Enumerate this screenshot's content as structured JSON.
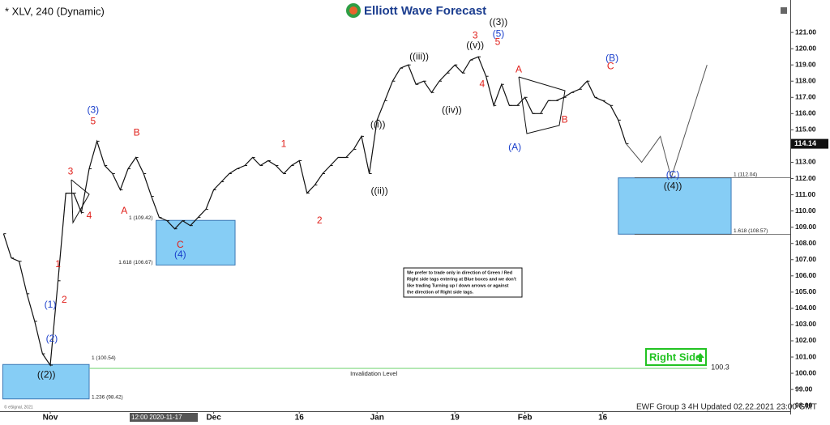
{
  "title": "* XLV, 240 (Dynamic)",
  "logo": "Elliott Wave Forecast",
  "note": [
    "We prefer to trade only in direction of Green / Red",
    "Right side tags entering at Blue boxes and we don't",
    "like trading Turning up / down arrows or against",
    "the direction of Right side tags."
  ],
  "right_side": "Right Side",
  "footer": "EWF Group 3 4H Updated 02.22.2021 23:00 GMT",
  "crosshair_label": "12:00 2020-11-17",
  "copyright": "© eSignal, 2021",
  "chart_data": {
    "type": "line",
    "x": [
      -6,
      -5,
      -4,
      -3,
      -2,
      -1,
      0,
      1,
      2,
      3,
      4,
      5,
      6,
      7,
      8,
      9,
      10,
      11,
      12,
      13,
      14,
      15,
      16,
      17,
      18,
      19,
      20,
      21,
      22,
      23,
      24,
      25,
      26,
      27,
      28,
      29,
      30,
      31,
      32,
      33,
      34,
      35,
      36,
      37,
      38,
      39,
      40,
      41,
      42,
      43,
      44,
      45,
      46,
      47,
      48,
      49,
      50,
      51,
      52,
      53,
      54,
      55,
      56,
      57,
      58,
      59,
      60,
      61,
      62,
      63,
      64,
      65,
      66,
      67,
      68,
      69,
      70,
      71,
      72,
      73,
      74
    ],
    "series": [
      {
        "color": "#111111",
        "values": [
          108.6,
          107.1,
          106.9,
          104.9,
          103.2,
          101.2,
          100.5,
          105.7,
          111.1,
          111.1,
          109.9,
          112.6,
          114.3,
          112.8,
          112.3,
          111.3,
          112.6,
          113.3,
          112.3,
          110.9,
          109.6,
          109.4,
          108.9,
          109.4,
          109.1,
          109.6,
          110.1,
          111.3,
          111.8,
          112.3,
          112.6,
          112.8,
          113.3,
          112.8,
          113.1,
          112.8,
          112.3,
          112.8,
          113.1,
          111.1,
          111.6,
          112.3,
          112.8,
          113.3,
          113.3,
          113.8,
          114.6,
          112.3,
          115.6,
          116.8,
          118.0,
          118.8,
          119.0,
          117.8,
          118.0,
          117.3,
          118.0,
          118.5,
          119.0,
          118.5,
          119.3,
          119.5,
          118.3,
          116.5,
          117.8,
          116.5,
          116.5,
          117.0,
          116.0,
          116.0,
          116.8,
          116.8,
          117.0,
          117.3,
          117.5,
          118.0,
          117.0,
          116.8,
          116.5,
          115.6,
          114.14
        ]
      }
    ],
    "projection": {
      "color": "#555555",
      "x": [
        74,
        76,
        78.4,
        79.8,
        84.4
      ],
      "values": [
        114.14,
        113.0,
        114.6,
        112.04,
        119.0
      ]
    },
    "invalidation": {
      "value": 100.3,
      "label": "Invalidation Level",
      "color": "#7fd87f",
      "x": [
        5,
        84.4
      ]
    },
    "boxes": [
      {
        "x": [
          13.6,
          23.75
        ],
        "y": [
          106.67,
          109.42
        ],
        "labels": [
          "1.618 (106.67)",
          "1 (109.42)"
        ],
        "label_side": "left"
      },
      {
        "x": [
          73.0,
          87.5
        ],
        "y": [
          108.57,
          112.04
        ],
        "labels": [
          "1.618 (108.57)",
          "1 (112.04)"
        ],
        "label_side": "right"
      },
      {
        "x": [
          -6.1,
          5.0
        ],
        "y": [
          98.42,
          100.54
        ],
        "labels": [
          "1.236 (98.42)",
          "1 (100.54)"
        ],
        "label_side": "inside"
      }
    ],
    "box_color": "#86cdf5",
    "waves": [
      {
        "text": "((2))",
        "x": -0.5,
        "y": 99.9,
        "color": "#111111"
      },
      {
        "text": "(1)",
        "x": 0,
        "y": 104.2,
        "color": "#1a3fcc"
      },
      {
        "text": "(2)",
        "x": 0.2,
        "y": 102.1,
        "color": "#1a3fcc"
      },
      {
        "text": "1",
        "x": 1.0,
        "y": 106.7,
        "color": "#e0201b"
      },
      {
        "text": "2",
        "x": 1.8,
        "y": 104.5,
        "color": "#e0201b"
      },
      {
        "text": "3",
        "x": 2.6,
        "y": 112.4,
        "color": "#e0201b"
      },
      {
        "text": "4",
        "x": 5.0,
        "y": 109.7,
        "color": "#e0201b"
      },
      {
        "text": "(3)",
        "x": 5.5,
        "y": 116.2,
        "color": "#1a3fcc"
      },
      {
        "text": "5",
        "x": 5.5,
        "y": 115.5,
        "color": "#e0201b"
      },
      {
        "text": "A",
        "x": 9.5,
        "y": 110.0,
        "color": "#e0201b"
      },
      {
        "text": "B",
        "x": 11.1,
        "y": 114.8,
        "color": "#e0201b"
      },
      {
        "text": "C",
        "x": 16.7,
        "y": 107.9,
        "color": "#e0201b"
      },
      {
        "text": "(4)",
        "x": 16.7,
        "y": 107.3,
        "color": "#1a3fcc"
      },
      {
        "text": "1",
        "x": 30,
        "y": 114.1,
        "color": "#e0201b"
      },
      {
        "text": "2",
        "x": 34.6,
        "y": 109.4,
        "color": "#e0201b"
      },
      {
        "text": "((i))",
        "x": 42.1,
        "y": 115.3,
        "color": "#111111"
      },
      {
        "text": "((ii))",
        "x": 42.3,
        "y": 111.2,
        "color": "#111111"
      },
      {
        "text": "((iii))",
        "x": 47.4,
        "y": 119.5,
        "color": "#111111"
      },
      {
        "text": "((iv))",
        "x": 51.6,
        "y": 116.2,
        "color": "#111111"
      },
      {
        "text": "((v))",
        "x": 54.6,
        "y": 120.2,
        "color": "#111111"
      },
      {
        "text": "3",
        "x": 54.6,
        "y": 120.8,
        "color": "#e0201b"
      },
      {
        "text": "4",
        "x": 55.5,
        "y": 117.8,
        "color": "#e0201b"
      },
      {
        "text": "((3))",
        "x": 57.6,
        "y": 121.6,
        "color": "#111111"
      },
      {
        "text": "(5)",
        "x": 57.6,
        "y": 120.9,
        "color": "#1a3fcc"
      },
      {
        "text": "5",
        "x": 57.5,
        "y": 120.4,
        "color": "#e0201b"
      },
      {
        "text": "A",
        "x": 60.2,
        "y": 118.7,
        "color": "#e0201b"
      },
      {
        "text": "(A)",
        "x": 59.7,
        "y": 113.9,
        "color": "#1a3fcc"
      },
      {
        "text": "B",
        "x": 66.1,
        "y": 115.6,
        "color": "#e0201b"
      },
      {
        "text": "(B)",
        "x": 72.2,
        "y": 119.4,
        "color": "#1a3fcc"
      },
      {
        "text": "C",
        "x": 72.0,
        "y": 118.9,
        "color": "#e0201b"
      },
      {
        "text": "(C)",
        "x": 80,
        "y": 112.2,
        "color": "#1a3fcc"
      },
      {
        "text": "((4))",
        "x": 80,
        "y": 111.5,
        "color": "#111111"
      }
    ],
    "xlim": [
      -6.46,
      95.1
    ],
    "ylim": [
      97.46,
      123.0
    ],
    "xticks": [
      {
        "value": 0,
        "label": "Nov"
      },
      {
        "value": 21,
        "label": "Dec"
      },
      {
        "value": 32,
        "label": "16"
      },
      {
        "value": 42,
        "label": "Jan"
      },
      {
        "value": 52,
        "label": "19"
      },
      {
        "value": 61,
        "label": "Feb"
      },
      {
        "value": 71,
        "label": "16"
      }
    ],
    "yticks": [
      {
        "value": 98,
        "label": "98.00"
      },
      {
        "value": 99,
        "label": "99.00"
      },
      {
        "value": 100,
        "label": "100.00"
      },
      {
        "value": 101,
        "label": "101.00"
      },
      {
        "value": 102,
        "label": "102.00"
      },
      {
        "value": 103,
        "label": "103.00"
      },
      {
        "value": 104,
        "label": "104.00"
      },
      {
        "value": 105,
        "label": "105.00"
      },
      {
        "value": 106,
        "label": "106.00"
      },
      {
        "value": 107,
        "label": "107.00"
      },
      {
        "value": 108,
        "label": "108.00"
      },
      {
        "value": 109,
        "label": "109.00"
      },
      {
        "value": 110,
        "label": "110.00"
      },
      {
        "value": 111,
        "label": "111.00"
      },
      {
        "value": 112,
        "label": "112.00"
      },
      {
        "value": 113,
        "label": "113.00"
      },
      {
        "value": 114,
        "label": "114.00"
      },
      {
        "value": 115,
        "label": "115.00"
      },
      {
        "value": 116,
        "label": "116.00"
      },
      {
        "value": 117,
        "label": "117.00"
      },
      {
        "value": 118,
        "label": "118.00"
      },
      {
        "value": 119,
        "label": "119.00"
      },
      {
        "value": 120,
        "label": "120.00"
      },
      {
        "value": 121,
        "label": "121.00"
      }
    ]
  }
}
